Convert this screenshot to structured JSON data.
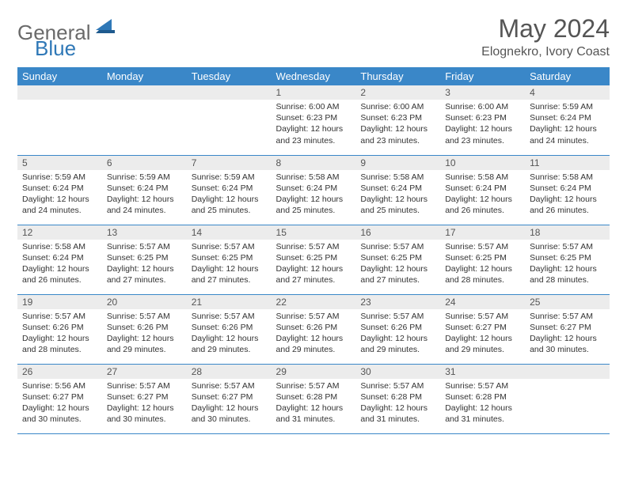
{
  "brand": {
    "word1": "General",
    "word2": "Blue"
  },
  "title": "May 2024",
  "location": "Elognekro, Ivory Coast",
  "colors": {
    "header_bg": "#3a87c8",
    "header_text": "#ffffff",
    "daynum_bg": "#ececec",
    "border": "#3a87c8",
    "logo_gray": "#6a6a6a",
    "logo_blue": "#2f78b7"
  },
  "day_headers": [
    "Sunday",
    "Monday",
    "Tuesday",
    "Wednesday",
    "Thursday",
    "Friday",
    "Saturday"
  ],
  "weeks": [
    [
      null,
      null,
      null,
      {
        "n": "1",
        "sr": "6:00 AM",
        "ss": "6:23 PM",
        "dl": "12 hours and 23 minutes."
      },
      {
        "n": "2",
        "sr": "6:00 AM",
        "ss": "6:23 PM",
        "dl": "12 hours and 23 minutes."
      },
      {
        "n": "3",
        "sr": "6:00 AM",
        "ss": "6:23 PM",
        "dl": "12 hours and 23 minutes."
      },
      {
        "n": "4",
        "sr": "5:59 AM",
        "ss": "6:24 PM",
        "dl": "12 hours and 24 minutes."
      }
    ],
    [
      {
        "n": "5",
        "sr": "5:59 AM",
        "ss": "6:24 PM",
        "dl": "12 hours and 24 minutes."
      },
      {
        "n": "6",
        "sr": "5:59 AM",
        "ss": "6:24 PM",
        "dl": "12 hours and 24 minutes."
      },
      {
        "n": "7",
        "sr": "5:59 AM",
        "ss": "6:24 PM",
        "dl": "12 hours and 25 minutes."
      },
      {
        "n": "8",
        "sr": "5:58 AM",
        "ss": "6:24 PM",
        "dl": "12 hours and 25 minutes."
      },
      {
        "n": "9",
        "sr": "5:58 AM",
        "ss": "6:24 PM",
        "dl": "12 hours and 25 minutes."
      },
      {
        "n": "10",
        "sr": "5:58 AM",
        "ss": "6:24 PM",
        "dl": "12 hours and 26 minutes."
      },
      {
        "n": "11",
        "sr": "5:58 AM",
        "ss": "6:24 PM",
        "dl": "12 hours and 26 minutes."
      }
    ],
    [
      {
        "n": "12",
        "sr": "5:58 AM",
        "ss": "6:24 PM",
        "dl": "12 hours and 26 minutes."
      },
      {
        "n": "13",
        "sr": "5:57 AM",
        "ss": "6:25 PM",
        "dl": "12 hours and 27 minutes."
      },
      {
        "n": "14",
        "sr": "5:57 AM",
        "ss": "6:25 PM",
        "dl": "12 hours and 27 minutes."
      },
      {
        "n": "15",
        "sr": "5:57 AM",
        "ss": "6:25 PM",
        "dl": "12 hours and 27 minutes."
      },
      {
        "n": "16",
        "sr": "5:57 AM",
        "ss": "6:25 PM",
        "dl": "12 hours and 27 minutes."
      },
      {
        "n": "17",
        "sr": "5:57 AM",
        "ss": "6:25 PM",
        "dl": "12 hours and 28 minutes."
      },
      {
        "n": "18",
        "sr": "5:57 AM",
        "ss": "6:25 PM",
        "dl": "12 hours and 28 minutes."
      }
    ],
    [
      {
        "n": "19",
        "sr": "5:57 AM",
        "ss": "6:26 PM",
        "dl": "12 hours and 28 minutes."
      },
      {
        "n": "20",
        "sr": "5:57 AM",
        "ss": "6:26 PM",
        "dl": "12 hours and 29 minutes."
      },
      {
        "n": "21",
        "sr": "5:57 AM",
        "ss": "6:26 PM",
        "dl": "12 hours and 29 minutes."
      },
      {
        "n": "22",
        "sr": "5:57 AM",
        "ss": "6:26 PM",
        "dl": "12 hours and 29 minutes."
      },
      {
        "n": "23",
        "sr": "5:57 AM",
        "ss": "6:26 PM",
        "dl": "12 hours and 29 minutes."
      },
      {
        "n": "24",
        "sr": "5:57 AM",
        "ss": "6:27 PM",
        "dl": "12 hours and 29 minutes."
      },
      {
        "n": "25",
        "sr": "5:57 AM",
        "ss": "6:27 PM",
        "dl": "12 hours and 30 minutes."
      }
    ],
    [
      {
        "n": "26",
        "sr": "5:56 AM",
        "ss": "6:27 PM",
        "dl": "12 hours and 30 minutes."
      },
      {
        "n": "27",
        "sr": "5:57 AM",
        "ss": "6:27 PM",
        "dl": "12 hours and 30 minutes."
      },
      {
        "n": "28",
        "sr": "5:57 AM",
        "ss": "6:27 PM",
        "dl": "12 hours and 30 minutes."
      },
      {
        "n": "29",
        "sr": "5:57 AM",
        "ss": "6:28 PM",
        "dl": "12 hours and 31 minutes."
      },
      {
        "n": "30",
        "sr": "5:57 AM",
        "ss": "6:28 PM",
        "dl": "12 hours and 31 minutes."
      },
      {
        "n": "31",
        "sr": "5:57 AM",
        "ss": "6:28 PM",
        "dl": "12 hours and 31 minutes."
      },
      null
    ]
  ],
  "labels": {
    "sunrise": "Sunrise:",
    "sunset": "Sunset:",
    "daylight": "Daylight:"
  }
}
